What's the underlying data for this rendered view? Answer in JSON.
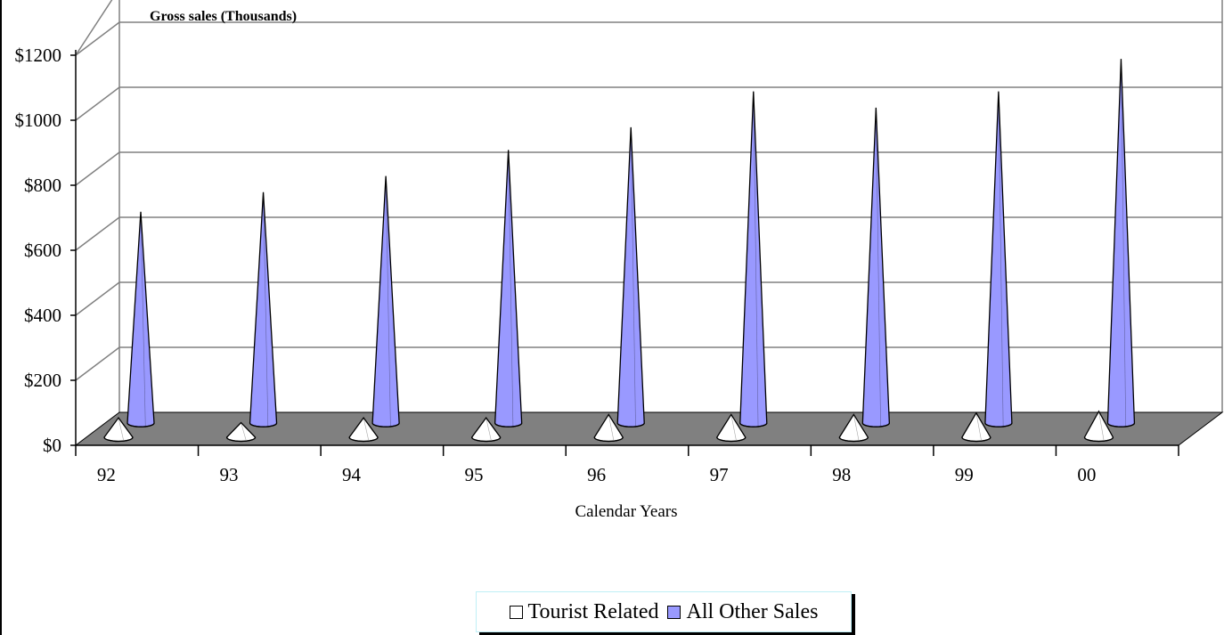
{
  "chart_data": {
    "type": "bar",
    "style": "3d-cone",
    "title": "Gross sales (Thousands)",
    "xlabel": "Calendar Years",
    "ylabel": "",
    "categories": [
      "92",
      "93",
      "94",
      "95",
      "96",
      "97",
      "98",
      "99",
      "00"
    ],
    "y_ticks": [
      "$0",
      "$200",
      "$400",
      "$600",
      "$800",
      "$1000",
      "$1200"
    ],
    "ylim": [
      0,
      1200
    ],
    "grid": true,
    "legend_position": "bottom",
    "series": [
      {
        "name": "Tourist Related",
        "color": "#ffffff",
        "values": [
          60,
          45,
          60,
          60,
          70,
          70,
          70,
          75,
          80
        ]
      },
      {
        "name": "All Other Sales",
        "color": "#9999ff",
        "values": [
          650,
          710,
          760,
          840,
          910,
          1020,
          970,
          1020,
          1120
        ]
      }
    ]
  }
}
